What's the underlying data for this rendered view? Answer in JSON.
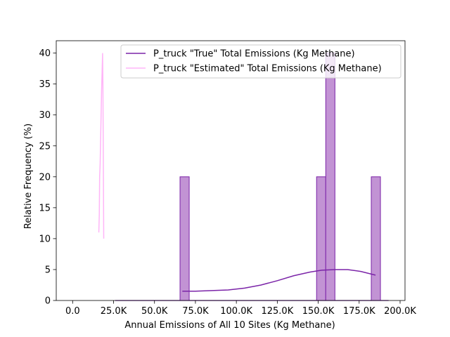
{
  "chart_data": {
    "type": "histogram",
    "xlabel": "Annual Emissions of All 10 Sites (Kg Methane)",
    "ylabel": "Relative Frequency (%)",
    "xlim": [
      -10000,
      203000
    ],
    "ylim": [
      0,
      42
    ],
    "x_ticks": [
      {
        "value": 0,
        "label": "0.0"
      },
      {
        "value": 25000,
        "label": "25.0K"
      },
      {
        "value": 50000,
        "label": "50.0K"
      },
      {
        "value": 75000,
        "label": "75.0K"
      },
      {
        "value": 100000,
        "label": "100.0K"
      },
      {
        "value": 125000,
        "label": "125.0K"
      },
      {
        "value": 150000,
        "label": "150.0K"
      },
      {
        "value": 175000,
        "label": "175.0K"
      },
      {
        "value": 200000,
        "label": "200.0K"
      }
    ],
    "y_ticks": [
      {
        "value": 0,
        "label": "0"
      },
      {
        "value": 5,
        "label": "5"
      },
      {
        "value": 10,
        "label": "10"
      },
      {
        "value": 15,
        "label": "15"
      },
      {
        "value": 20,
        "label": "20"
      },
      {
        "value": 25,
        "label": "25"
      },
      {
        "value": 30,
        "label": "30"
      },
      {
        "value": 35,
        "label": "35"
      },
      {
        "value": 40,
        "label": "40"
      }
    ],
    "legend_position": "upper-right",
    "series": [
      {
        "name": "P_truck \"True\" Total Emissions (Kg Methane)",
        "color": "#7B24A8",
        "fill": "#C293D4",
        "bins": [
          {
            "x0": 65600,
            "x1": 71200,
            "value": 20
          },
          {
            "x0": 149000,
            "x1": 154600,
            "value": 20
          },
          {
            "x0": 154600,
            "x1": 160200,
            "value": 40
          },
          {
            "x0": 182400,
            "x1": 188000,
            "value": 20
          }
        ],
        "base_range": [
          26000,
          193000
        ],
        "kde": [
          [
            67000,
            1.5
          ],
          [
            75000,
            1.5
          ],
          [
            85000,
            1.6
          ],
          [
            95000,
            1.7
          ],
          [
            105000,
            2.0
          ],
          [
            115000,
            2.5
          ],
          [
            125000,
            3.2
          ],
          [
            135000,
            4.0
          ],
          [
            145000,
            4.6
          ],
          [
            152000,
            4.9
          ],
          [
            160000,
            5.0
          ],
          [
            168000,
            5.0
          ],
          [
            176000,
            4.7
          ],
          [
            185000,
            4.1
          ]
        ]
      },
      {
        "name": "P_truck \"Estimated\" Total Emissions (Kg Methane)",
        "color": "#FFB6F8",
        "bins": [],
        "kde": [
          [
            16000,
            11
          ],
          [
            16300,
            14
          ],
          [
            16500,
            20
          ],
          [
            16800,
            22
          ],
          [
            17100,
            26
          ],
          [
            17400,
            30
          ],
          [
            17700,
            34
          ],
          [
            17900,
            36
          ],
          [
            18100,
            38
          ],
          [
            18300,
            40
          ],
          [
            18500,
            35
          ],
          [
            18700,
            25
          ],
          [
            18900,
            15
          ],
          [
            19000,
            10
          ]
        ]
      }
    ]
  }
}
